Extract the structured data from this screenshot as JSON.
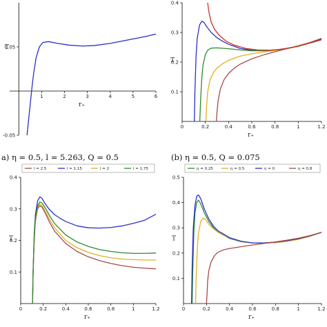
{
  "captions": {
    "a": "a)  η = 0.5, l = 5.263, Q = 0.5",
    "b": "(b)  η = 0.5, Q = 0.075"
  },
  "chart_data": [
    {
      "id": "a",
      "type": "line",
      "ylabel": "T",
      "xlabel": "r₊",
      "xlim": [
        -0.4,
        6.0
      ],
      "ylim": [
        -0.05,
        0.1
      ],
      "xticks": [
        1,
        2,
        3,
        4,
        5,
        6
      ],
      "xtick_labels": [
        "1",
        "2",
        "3",
        "4",
        "5",
        "6"
      ],
      "yticks": [
        -0.05,
        0.05
      ],
      "ytick_labels": [
        "-0.05",
        "0.05"
      ],
      "legend": null,
      "series": [
        {
          "name": "",
          "color": "#2a2ec8",
          "x": [
            0.36,
            0.42,
            0.5,
            0.58,
            0.66,
            0.76,
            0.9,
            1.05,
            1.3,
            1.7,
            2.2,
            2.8,
            3.3,
            4.0,
            4.8,
            5.5,
            6.0
          ],
          "y": [
            -0.05,
            -0.035,
            -0.015,
            0.005,
            0.022,
            0.038,
            0.05,
            0.055,
            0.056,
            0.054,
            0.052,
            0.051,
            0.0515,
            0.054,
            0.058,
            0.0615,
            0.0645
          ]
        }
      ]
    },
    {
      "id": "b",
      "type": "line",
      "ylabel": "T",
      "xlabel": "r₊",
      "xlim": [
        0,
        1.2
      ],
      "ylim": [
        0,
        0.4
      ],
      "xticks": [
        0,
        0.2,
        0.4,
        0.6,
        0.8,
        1,
        1.2
      ],
      "xtick_labels": [
        "0",
        "0.2",
        "0.4",
        "0.6",
        "0.8",
        "1",
        "1.2"
      ],
      "yticks": [
        0.1,
        0.2,
        0.3,
        0.4
      ],
      "ytick_labels": [
        "0.1",
        "0.2",
        "0.3",
        "0.4"
      ],
      "legend": null,
      "series": [
        {
          "name": "",
          "color": "#2a2ec8",
          "x": [
            0.105,
            0.11,
            0.12,
            0.13,
            0.15,
            0.17,
            0.19,
            0.21,
            0.25,
            0.3,
            0.35,
            0.4,
            0.5,
            0.6,
            0.7,
            0.8,
            0.9,
            1.0,
            1.1,
            1.2
          ],
          "y": [
            0.0,
            0.1,
            0.22,
            0.28,
            0.325,
            0.338,
            0.333,
            0.32,
            0.3,
            0.282,
            0.27,
            0.26,
            0.246,
            0.24,
            0.239,
            0.241,
            0.246,
            0.254,
            0.264,
            0.275
          ]
        },
        {
          "name": "",
          "color": "#2d8a2d",
          "x": [
            0.152,
            0.16,
            0.17,
            0.18,
            0.2,
            0.22,
            0.25,
            0.3,
            0.4,
            0.5,
            0.6,
            0.7,
            0.8,
            0.9,
            1.0,
            1.1,
            1.2
          ],
          "y": [
            0.0,
            0.08,
            0.15,
            0.19,
            0.225,
            0.24,
            0.247,
            0.248,
            0.245,
            0.241,
            0.238,
            0.238,
            0.24,
            0.245,
            0.253,
            0.264,
            0.276
          ]
        },
        {
          "name": "",
          "color": "#e0b020",
          "x": [
            0.205,
            0.21,
            0.22,
            0.24,
            0.27,
            0.3,
            0.35,
            0.4,
            0.5,
            0.6,
            0.7,
            0.8,
            0.9,
            1.0,
            1.1,
            1.2
          ],
          "y": [
            0.0,
            0.05,
            0.1,
            0.14,
            0.165,
            0.18,
            0.195,
            0.206,
            0.22,
            0.228,
            0.234,
            0.239,
            0.245,
            0.254,
            0.265,
            0.278
          ]
        },
        {
          "name": "",
          "color": "#a84848",
          "x": [
            0.295,
            0.3,
            0.31,
            0.33,
            0.36,
            0.4,
            0.45,
            0.5,
            0.6,
            0.7,
            0.8,
            0.9,
            1.0,
            1.1,
            1.2
          ],
          "y": [
            0.0,
            0.03,
            0.07,
            0.11,
            0.14,
            0.162,
            0.18,
            0.193,
            0.211,
            0.224,
            0.235,
            0.245,
            0.255,
            0.266,
            0.28
          ]
        },
        {
          "name": "",
          "color": "#c8322c",
          "x": [
            0.22,
            0.23,
            0.25,
            0.28,
            0.32,
            0.38,
            0.45,
            0.55,
            0.65,
            0.75,
            0.85,
            0.95,
            1.05,
            1.2
          ],
          "y": [
            0.4,
            0.37,
            0.335,
            0.31,
            0.29,
            0.27,
            0.257,
            0.246,
            0.241,
            0.24,
            0.243,
            0.25,
            0.259,
            0.277
          ]
        }
      ]
    },
    {
      "id": "c",
      "type": "line",
      "ylabel": "T",
      "xlabel": "r₊",
      "xlim": [
        0,
        1.2
      ],
      "ylim": [
        0,
        0.4
      ],
      "xticks": [
        0,
        0.2,
        0.4,
        0.6,
        0.8,
        1,
        1.2
      ],
      "xtick_labels": [
        "0",
        "0.2",
        "0.4",
        "0.6",
        "0.8",
        "1",
        "1.2"
      ],
      "yticks": [
        0.1,
        0.2,
        0.3,
        0.4
      ],
      "ytick_labels": [
        "0.1",
        "0.2",
        "0.3",
        "0.4"
      ],
      "legend": "top",
      "series": [
        {
          "name": "l = 2.5",
          "color": "#a84848",
          "x": [
            0.105,
            0.11,
            0.12,
            0.13,
            0.15,
            0.17,
            0.19,
            0.22,
            0.26,
            0.3,
            0.4,
            0.5,
            0.6,
            0.7,
            0.8,
            0.9,
            1.0,
            1.1,
            1.2
          ],
          "y": [
            0.0,
            0.1,
            0.2,
            0.26,
            0.3,
            0.31,
            0.305,
            0.285,
            0.255,
            0.23,
            0.19,
            0.165,
            0.148,
            0.136,
            0.127,
            0.12,
            0.115,
            0.112,
            0.11
          ]
        },
        {
          "name": "l = 1.15",
          "color": "#2a2ec8",
          "x": [
            0.105,
            0.11,
            0.12,
            0.13,
            0.15,
            0.17,
            0.19,
            0.21,
            0.25,
            0.3,
            0.35,
            0.4,
            0.5,
            0.6,
            0.7,
            0.8,
            0.9,
            1.0,
            1.1,
            1.2
          ],
          "y": [
            0.0,
            0.1,
            0.22,
            0.28,
            0.325,
            0.338,
            0.333,
            0.32,
            0.3,
            0.282,
            0.27,
            0.26,
            0.246,
            0.24,
            0.239,
            0.241,
            0.246,
            0.254,
            0.264,
            0.283
          ]
        },
        {
          "name": "l = 2",
          "color": "#e0b020",
          "x": [
            0.105,
            0.11,
            0.12,
            0.13,
            0.15,
            0.17,
            0.19,
            0.22,
            0.26,
            0.3,
            0.4,
            0.5,
            0.6,
            0.7,
            0.8,
            0.9,
            1.0,
            1.1,
            1.2
          ],
          "y": [
            0.0,
            0.1,
            0.205,
            0.265,
            0.305,
            0.315,
            0.31,
            0.292,
            0.264,
            0.24,
            0.2,
            0.177,
            0.162,
            0.152,
            0.145,
            0.141,
            0.139,
            0.138,
            0.138
          ]
        },
        {
          "name": "l = 1.75",
          "color": "#2d8a2d",
          "x": [
            0.105,
            0.11,
            0.12,
            0.13,
            0.15,
            0.17,
            0.19,
            0.22,
            0.26,
            0.3,
            0.4,
            0.5,
            0.6,
            0.7,
            0.8,
            0.9,
            1.0,
            1.1,
            1.2
          ],
          "y": [
            0.0,
            0.1,
            0.21,
            0.27,
            0.31,
            0.322,
            0.318,
            0.302,
            0.276,
            0.254,
            0.217,
            0.195,
            0.181,
            0.171,
            0.165,
            0.161,
            0.159,
            0.159,
            0.16
          ]
        }
      ]
    },
    {
      "id": "d",
      "type": "line",
      "ylabel": "T",
      "xlabel": "r₊",
      "xlim": [
        0,
        1.2
      ],
      "ylim": [
        0,
        0.5
      ],
      "xticks": [
        0,
        0.2,
        0.4,
        0.6,
        0.8,
        1,
        1.2
      ],
      "xtick_labels": [
        "0",
        "0.2",
        "0.4",
        "0.6",
        "0.8",
        "1",
        "1.2"
      ],
      "yticks": [
        0.1,
        0.2,
        0.3,
        0.4,
        0.5
      ],
      "ytick_labels": [
        "0.1",
        "0.2",
        "0.3",
        "0.4",
        "0.5"
      ],
      "legend": "top",
      "series": [
        {
          "name": "η = 0.25",
          "color": "#2d8a2d",
          "x": [
            0.075,
            0.08,
            0.09,
            0.1,
            0.115,
            0.13,
            0.15,
            0.18,
            0.22,
            0.26,
            0.3,
            0.4,
            0.5,
            0.6,
            0.7,
            0.8,
            0.9,
            1.0,
            1.1,
            1.2
          ],
          "y": [
            0.0,
            0.12,
            0.28,
            0.36,
            0.4,
            0.41,
            0.395,
            0.36,
            0.325,
            0.3,
            0.283,
            0.258,
            0.245,
            0.24,
            0.24,
            0.243,
            0.249,
            0.257,
            0.268,
            0.282
          ]
        },
        {
          "name": "η = 0.5",
          "color": "#e0b020",
          "x": [
            0.105,
            0.11,
            0.12,
            0.13,
            0.15,
            0.17,
            0.19,
            0.21,
            0.25,
            0.3,
            0.35,
            0.4,
            0.5,
            0.6,
            0.7,
            0.8,
            0.9,
            1.0,
            1.1,
            1.2
          ],
          "y": [
            0.0,
            0.1,
            0.22,
            0.28,
            0.325,
            0.338,
            0.333,
            0.32,
            0.3,
            0.282,
            0.27,
            0.26,
            0.246,
            0.24,
            0.239,
            0.241,
            0.246,
            0.254,
            0.266,
            0.282
          ]
        },
        {
          "name": "η = 0",
          "color": "#2a2ec8",
          "x": [
            0.07,
            0.075,
            0.085,
            0.1,
            0.115,
            0.13,
            0.15,
            0.18,
            0.22,
            0.26,
            0.3,
            0.4,
            0.5,
            0.6,
            0.7,
            0.8,
            0.9,
            1.0,
            1.1,
            1.2
          ],
          "y": [
            0.0,
            0.14,
            0.3,
            0.39,
            0.425,
            0.43,
            0.415,
            0.375,
            0.335,
            0.307,
            0.288,
            0.261,
            0.247,
            0.24,
            0.24,
            0.243,
            0.249,
            0.257,
            0.268,
            0.282
          ]
        },
        {
          "name": "η = 0.8",
          "color": "#a84848",
          "x": [
            0.2,
            0.205,
            0.21,
            0.22,
            0.24,
            0.27,
            0.3,
            0.35,
            0.4,
            0.5,
            0.6,
            0.7,
            0.8,
            0.9,
            1.0,
            1.1,
            1.2
          ],
          "y": [
            0.0,
            0.04,
            0.09,
            0.13,
            0.165,
            0.19,
            0.203,
            0.213,
            0.218,
            0.225,
            0.232,
            0.238,
            0.244,
            0.251,
            0.259,
            0.269,
            0.282
          ]
        }
      ]
    }
  ]
}
